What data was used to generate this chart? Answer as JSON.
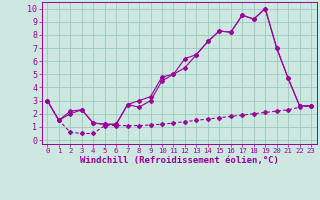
{
  "background_color": "#cce8e0",
  "grid_color": "#99ccbb",
  "line_color": "#990099",
  "xlabel": "Windchill (Refroidissement éolien,°C)",
  "xlim": [
    -0.5,
    23.5
  ],
  "ylim": [
    -0.3,
    10.5
  ],
  "xticks": [
    0,
    1,
    2,
    3,
    4,
    5,
    6,
    7,
    8,
    9,
    10,
    11,
    12,
    13,
    14,
    15,
    16,
    17,
    18,
    19,
    20,
    21,
    22,
    23
  ],
  "yticks": [
    0,
    1,
    2,
    3,
    4,
    5,
    6,
    7,
    8,
    9,
    10
  ],
  "line1_x": [
    0,
    1,
    2,
    3,
    4,
    5,
    6,
    7,
    8,
    9,
    10,
    11,
    12,
    13,
    14,
    15,
    16,
    17,
    18,
    19,
    20,
    21,
    22,
    23
  ],
  "line1_y": [
    3.0,
    1.5,
    2.2,
    2.3,
    1.3,
    1.2,
    1.2,
    2.7,
    3.0,
    3.3,
    4.8,
    5.0,
    6.2,
    6.5,
    7.5,
    8.3,
    8.2,
    9.5,
    9.2,
    10.0,
    7.0,
    4.7,
    2.6,
    2.6
  ],
  "line2_x": [
    0,
    1,
    2,
    3,
    4,
    5,
    6,
    7,
    8,
    9,
    10,
    11,
    12,
    13,
    14,
    15,
    16,
    17,
    18,
    19,
    20,
    21,
    22,
    23
  ],
  "line2_y": [
    3.0,
    1.5,
    2.0,
    2.3,
    1.3,
    1.2,
    1.2,
    2.7,
    2.5,
    3.0,
    4.5,
    5.0,
    5.5,
    6.5,
    7.5,
    8.3,
    8.2,
    9.5,
    9.2,
    10.0,
    7.0,
    4.7,
    2.6,
    2.6
  ],
  "line3_x": [
    0,
    1,
    2,
    3,
    4,
    5,
    6,
    7,
    8,
    9,
    10,
    11,
    12,
    13,
    14,
    15,
    16,
    17,
    18,
    19,
    20,
    21,
    22,
    23
  ],
  "line3_y": [
    3.0,
    1.5,
    0.6,
    0.5,
    0.5,
    1.1,
    1.1,
    1.1,
    1.1,
    1.15,
    1.2,
    1.3,
    1.4,
    1.5,
    1.6,
    1.7,
    1.8,
    1.9,
    2.0,
    2.1,
    2.2,
    2.3,
    2.5,
    2.6
  ],
  "xlabel_fontsize": 6.5,
  "tick_fontsize_x": 5.2,
  "tick_fontsize_y": 6.0
}
